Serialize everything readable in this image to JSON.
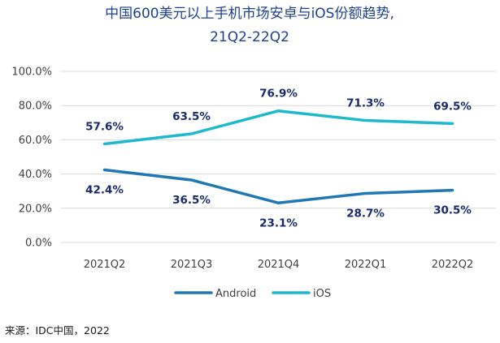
{
  "chart_data": {
    "type": "line",
    "title_line1": "中国600美元以上手机市场安卓与iOS份额趋势,",
    "title_line2": "21Q2-22Q2",
    "categories": [
      "2021Q2",
      "2021Q3",
      "2021Q4",
      "2022Q1",
      "2022Q2"
    ],
    "y_ticks": [
      "0.0%",
      "20.0%",
      "40.0%",
      "60.0%",
      "80.0%",
      "100.0%"
    ],
    "ylim": [
      0,
      100
    ],
    "series": [
      {
        "name": "Android",
        "color": "#1f77b4",
        "values": [
          42.4,
          36.5,
          23.1,
          28.7,
          30.5
        ],
        "labels": [
          "42.4%",
          "36.5%",
          "23.1%",
          "28.7%",
          "30.5%"
        ]
      },
      {
        "name": "iOS",
        "color": "#1fb8cc",
        "values": [
          57.6,
          63.5,
          76.9,
          71.3,
          69.5
        ],
        "labels": [
          "57.6%",
          "63.5%",
          "76.9%",
          "71.3%",
          "69.5%"
        ]
      }
    ],
    "legend_position": "bottom",
    "grid": true
  },
  "source": "来源：IDC中国，2022"
}
